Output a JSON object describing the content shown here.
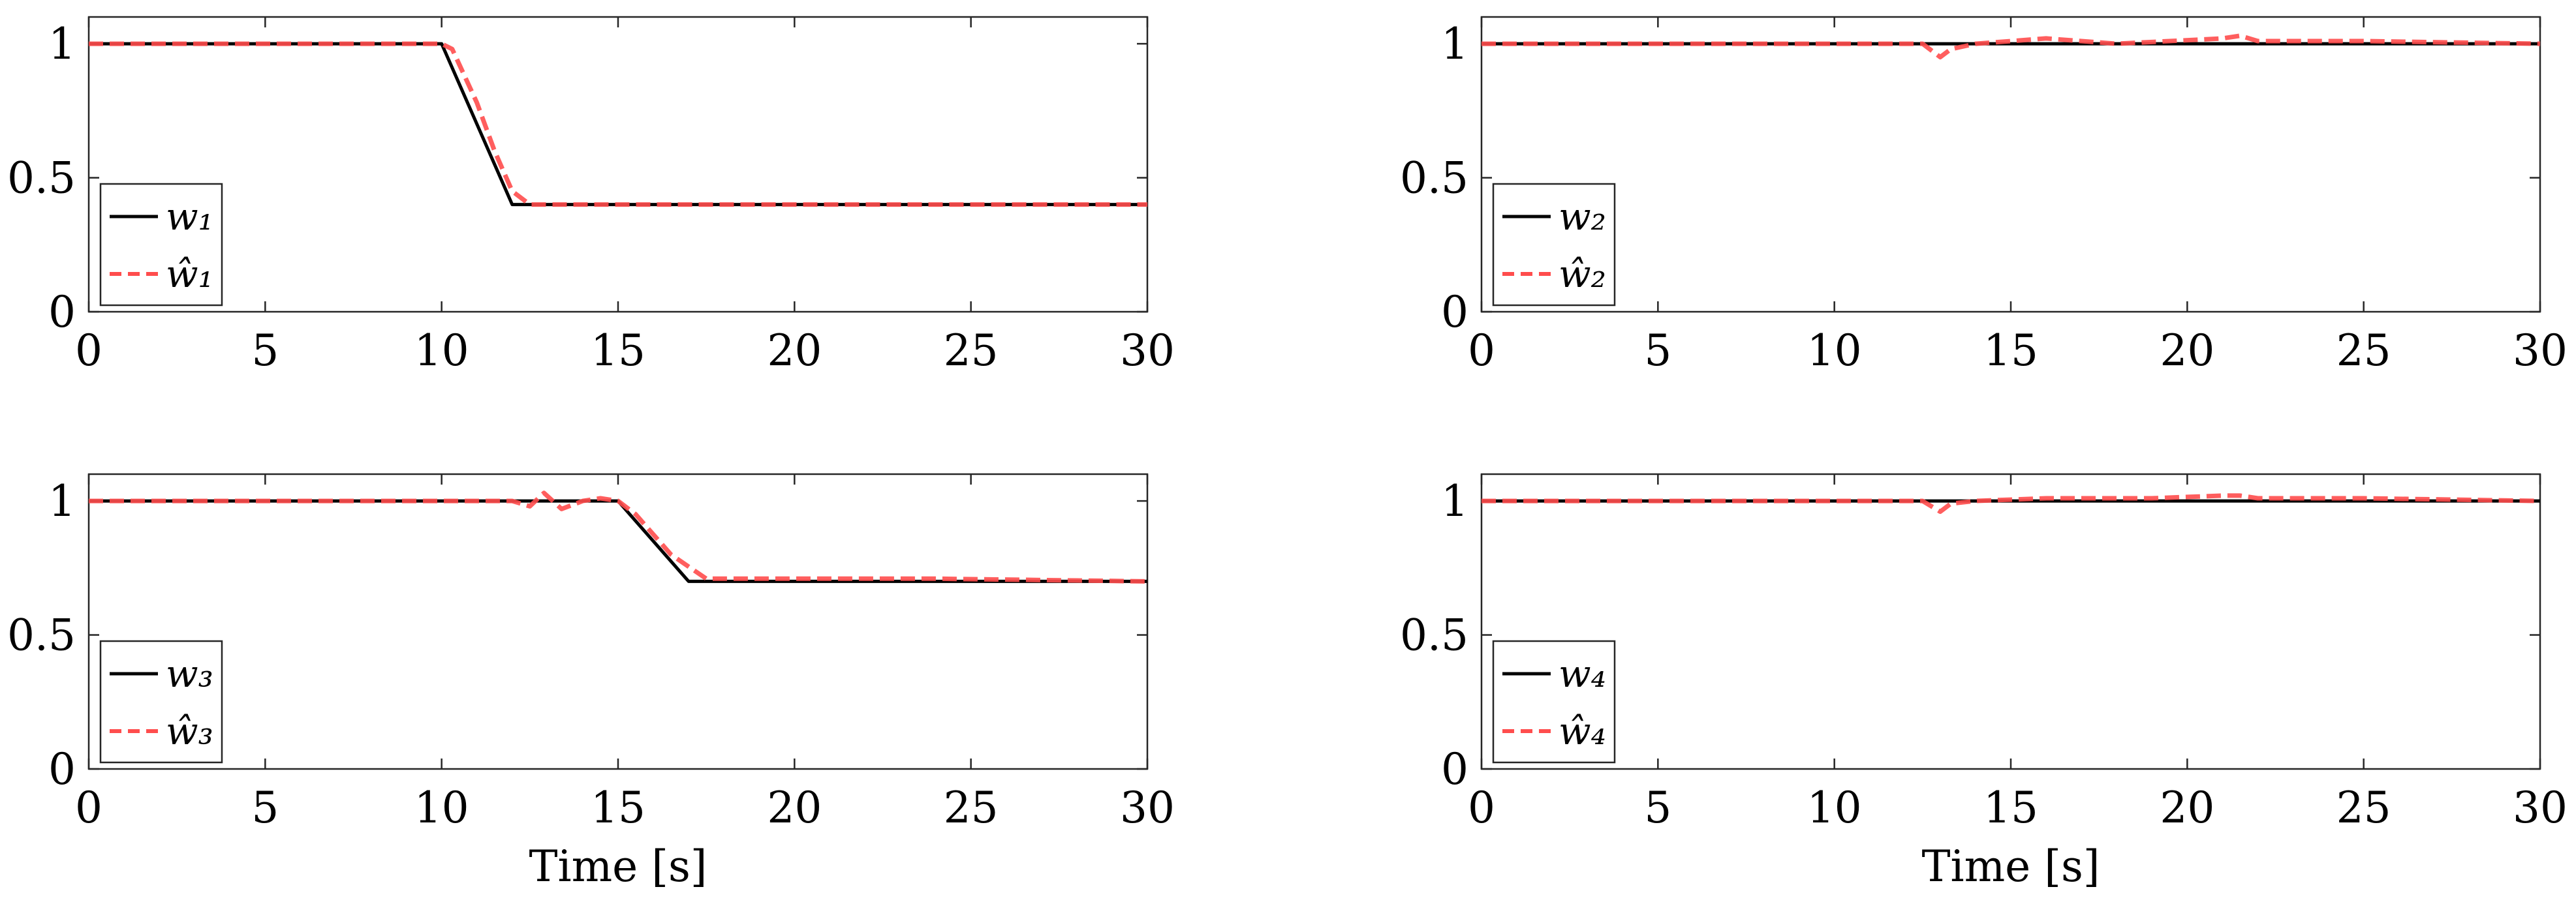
{
  "chart_data": [
    {
      "type": "line",
      "xlabel": "",
      "ylabel": "",
      "xlim": [
        0,
        30
      ],
      "ylim": [
        0,
        1.1
      ],
      "xticks": [
        "0",
        "5",
        "10",
        "15",
        "20",
        "25",
        "30"
      ],
      "yticks": [
        "0",
        "0.5",
        "1"
      ],
      "grid": false,
      "legend_position": "bottom-left",
      "series": [
        {
          "name": "w1",
          "legend_label": "w₁",
          "style": "solid",
          "color": "#000000",
          "x": [
            0,
            10,
            12,
            30
          ],
          "y": [
            1.0,
            1.0,
            0.4,
            0.4
          ]
        },
        {
          "name": "ŵ1",
          "legend_label": "ŵ₁",
          "style": "dashed",
          "color": "#ff4d4d",
          "x": [
            0,
            10,
            10.3,
            11,
            11.5,
            12,
            12.5,
            13,
            30
          ],
          "y": [
            1.0,
            1.0,
            0.98,
            0.78,
            0.6,
            0.45,
            0.4,
            0.4,
            0.4
          ]
        }
      ]
    },
    {
      "type": "line",
      "xlabel": "",
      "ylabel": "",
      "xlim": [
        0,
        30
      ],
      "ylim": [
        0,
        1.1
      ],
      "xticks": [
        "0",
        "5",
        "10",
        "15",
        "20",
        "25",
        "30"
      ],
      "yticks": [
        "0",
        "0.5",
        "1"
      ],
      "grid": false,
      "legend_position": "bottom-left",
      "series": [
        {
          "name": "w2",
          "legend_label": "w₂",
          "style": "solid",
          "color": "#000000",
          "x": [
            0,
            30
          ],
          "y": [
            1.0,
            1.0
          ]
        },
        {
          "name": "ŵ2",
          "legend_label": "ŵ₂",
          "style": "dashed",
          "color": "#ff4d4d",
          "x": [
            0,
            12.5,
            13,
            13.3,
            14,
            16,
            18,
            21,
            21.5,
            22,
            25,
            30
          ],
          "y": [
            1.0,
            1.0,
            0.95,
            0.98,
            1.0,
            1.02,
            1.0,
            1.02,
            1.03,
            1.01,
            1.01,
            1.0
          ]
        }
      ]
    },
    {
      "type": "line",
      "xlabel": "Time [s]",
      "ylabel": "",
      "xlim": [
        0,
        30
      ],
      "ylim": [
        0,
        1.1
      ],
      "xticks": [
        "0",
        "5",
        "10",
        "15",
        "20",
        "25",
        "30"
      ],
      "yticks": [
        "0",
        "0.5",
        "1"
      ],
      "grid": false,
      "legend_position": "bottom-left",
      "series": [
        {
          "name": "w3",
          "legend_label": "w₃",
          "style": "solid",
          "color": "#000000",
          "x": [
            0,
            15,
            17,
            30
          ],
          "y": [
            1.0,
            1.0,
            0.7,
            0.7
          ]
        },
        {
          "name": "ŵ3",
          "legend_label": "ŵ₃",
          "style": "dashed",
          "color": "#ff4d4d",
          "x": [
            0,
            12,
            12.5,
            12.9,
            13.4,
            14,
            14.5,
            15,
            15.5,
            16.5,
            17.5,
            20,
            24,
            30
          ],
          "y": [
            1.0,
            1.0,
            0.98,
            1.03,
            0.97,
            1.0,
            1.01,
            1.0,
            0.95,
            0.8,
            0.71,
            0.71,
            0.71,
            0.7
          ]
        }
      ]
    },
    {
      "type": "line",
      "xlabel": "Time [s]",
      "ylabel": "",
      "xlim": [
        0,
        30
      ],
      "ylim": [
        0,
        1.1
      ],
      "xticks": [
        "0",
        "5",
        "10",
        "15",
        "20",
        "25",
        "30"
      ],
      "yticks": [
        "0",
        "0.5",
        "1"
      ],
      "grid": false,
      "legend_position": "bottom-left",
      "series": [
        {
          "name": "w4",
          "legend_label": "w₄",
          "style": "solid",
          "color": "#000000",
          "x": [
            0,
            30
          ],
          "y": [
            1.0,
            1.0
          ]
        },
        {
          "name": "ŵ4",
          "legend_label": "ŵ₄",
          "style": "dashed",
          "color": "#ff4d4d",
          "x": [
            0,
            12.5,
            13,
            13.3,
            14,
            16,
            19,
            21,
            21.5,
            22,
            25,
            30
          ],
          "y": [
            1.0,
            1.0,
            0.96,
            0.99,
            1.0,
            1.01,
            1.01,
            1.02,
            1.02,
            1.01,
            1.01,
            1.0
          ]
        }
      ]
    }
  ]
}
